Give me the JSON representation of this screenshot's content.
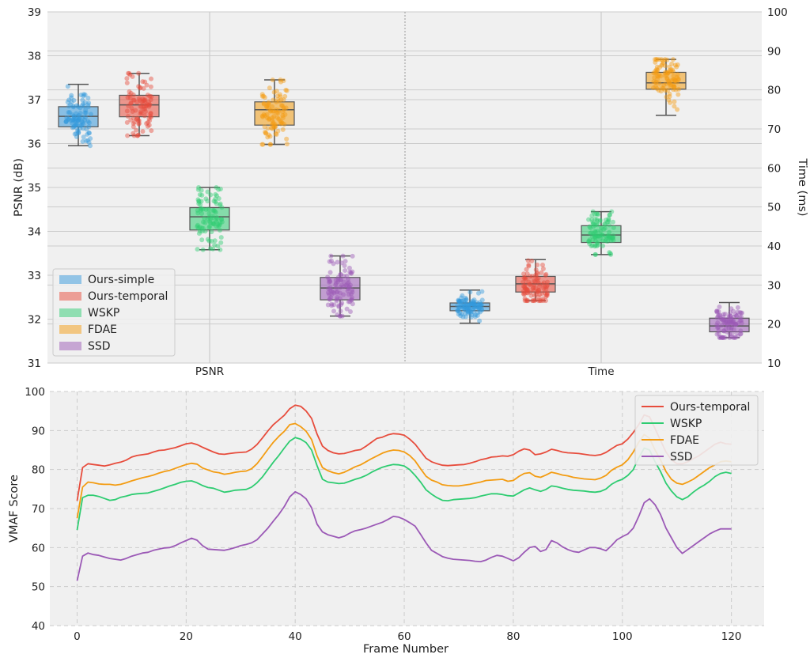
{
  "colors": {
    "background": "#f0f0f0",
    "grid": "#cbcbcb",
    "ours_simple": "#3498db",
    "ours_temporal": "#e74c3c",
    "wskp": "#2ecc71",
    "fdae": "#f39c12",
    "ssd": "#9b59b6"
  },
  "chart_data": [
    {
      "type": "box",
      "title": "",
      "categories": [
        "PSNR",
        "Time"
      ],
      "ylabel": "PSNR (dB)",
      "y2label": "Time (ms)",
      "ylim": [
        31,
        39
      ],
      "y2lim": [
        10,
        100
      ],
      "yticks": [
        "31",
        "32",
        "33",
        "34",
        "35",
        "36",
        "37",
        "38",
        "39"
      ],
      "y2ticks": [
        "10",
        "20",
        "30",
        "40",
        "50",
        "60",
        "70",
        "80",
        "90",
        "100"
      ],
      "grid": true,
      "legend": {
        "placement": "lower-left",
        "entries": [
          "Ours-simple",
          "Ours-temporal",
          "WSKP",
          "FDAE",
          "SSD"
        ]
      },
      "series": [
        {
          "name": "Ours-simple",
          "color": "#3498db",
          "psnr": {
            "min": 35.95,
            "q1": 36.38,
            "median": 36.62,
            "q3": 36.84,
            "max": 37.35
          },
          "time": {
            "min": 20.2,
            "q1": 23.4,
            "median": 24.5,
            "q3": 25.4,
            "max": 28.7
          }
        },
        {
          "name": "Ours-temporal",
          "color": "#e74c3c",
          "psnr": {
            "min": 36.18,
            "q1": 36.61,
            "median": 36.88,
            "q3": 37.1,
            "max": 37.6
          },
          "time": {
            "min": 26.0,
            "q1": 28.2,
            "median": 30.3,
            "q3": 32.2,
            "max": 36.5
          }
        },
        {
          "name": "WSKP",
          "color": "#2ecc71",
          "psnr": {
            "min": 33.58,
            "q1": 34.03,
            "median": 34.33,
            "q3": 34.54,
            "max": 35.0
          },
          "time": {
            "min": 37.8,
            "q1": 40.9,
            "median": 42.8,
            "q3": 45.2,
            "max": 48.8
          }
        },
        {
          "name": "FDAE",
          "color": "#f39c12",
          "psnr": {
            "min": 35.98,
            "q1": 36.42,
            "median": 36.77,
            "q3": 36.95,
            "max": 37.45
          },
          "time": {
            "min": 73.5,
            "q1": 80.2,
            "median": 81.8,
            "q3": 84.5,
            "max": 87.8
          }
        },
        {
          "name": "SSD",
          "color": "#9b59b6",
          "psnr": {
            "min": 32.07,
            "q1": 32.44,
            "median": 32.71,
            "q3": 32.95,
            "max": 33.44
          },
          "time": {
            "min": 16.5,
            "q1": 18.0,
            "median": 19.5,
            "q3": 21.5,
            "max": 25.5
          }
        }
      ]
    },
    {
      "type": "line",
      "title": "",
      "xlabel": "Frame Number",
      "ylabel": "VMAF Score",
      "xlim": [
        -5,
        126
      ],
      "ylim": [
        40,
        100
      ],
      "xticks": [
        "0",
        "20",
        "40",
        "60",
        "80",
        "100",
        "120"
      ],
      "yticks": [
        "40",
        "50",
        "60",
        "70",
        "80",
        "90",
        "100"
      ],
      "grid": true,
      "legend": {
        "placement": "top-right",
        "entries": [
          "Ours-temporal",
          "WSKP",
          "FDAE",
          "SSD"
        ]
      },
      "x": [
        0,
        1,
        2,
        3,
        4,
        5,
        6,
        7,
        8,
        9,
        10,
        11,
        12,
        13,
        14,
        15,
        16,
        17,
        18,
        19,
        20,
        21,
        22,
        23,
        24,
        25,
        26,
        27,
        28,
        29,
        30,
        31,
        32,
        33,
        34,
        35,
        36,
        37,
        38,
        39,
        40,
        41,
        42,
        43,
        44,
        45,
        46,
        47,
        48,
        49,
        50,
        51,
        52,
        53,
        54,
        55,
        56,
        57,
        58,
        59,
        60,
        61,
        62,
        63,
        64,
        65,
        66,
        67,
        68,
        69,
        70,
        71,
        72,
        73,
        74,
        75,
        76,
        77,
        78,
        79,
        80,
        81,
        82,
        83,
        84,
        85,
        86,
        87,
        88,
        89,
        90,
        91,
        92,
        93,
        94,
        95,
        96,
        97,
        98,
        99,
        100,
        101,
        102,
        103,
        104,
        105,
        106,
        107,
        108,
        109,
        110,
        111,
        112,
        113,
        114,
        115,
        116,
        117,
        118,
        119,
        120
      ],
      "series": [
        {
          "name": "Ours-temporal",
          "color": "#e74c3c",
          "values": [
            72.0,
            80.5,
            81.5,
            81.3,
            81.1,
            80.9,
            81.2,
            81.6,
            81.9,
            82.4,
            83.2,
            83.6,
            83.8,
            84.0,
            84.5,
            84.9,
            85.0,
            85.3,
            85.6,
            86.1,
            86.6,
            86.8,
            86.4,
            85.7,
            85.1,
            84.5,
            84.0,
            83.9,
            84.1,
            84.3,
            84.4,
            84.5,
            85.2,
            86.4,
            88.1,
            89.9,
            91.5,
            92.7,
            93.9,
            95.6,
            96.5,
            96.2,
            95.0,
            93.1,
            89.1,
            86.0,
            84.9,
            84.3,
            84.0,
            84.1,
            84.5,
            84.9,
            85.1,
            86.0,
            87.0,
            88.0,
            88.3,
            88.9,
            89.2,
            89.1,
            88.8,
            87.8,
            86.5,
            84.7,
            82.9,
            82.0,
            81.5,
            81.1,
            81.0,
            81.1,
            81.2,
            81.3,
            81.6,
            82.0,
            82.5,
            82.8,
            83.2,
            83.3,
            83.5,
            83.4,
            83.8,
            84.7,
            85.3,
            85.0,
            83.8,
            84.0,
            84.5,
            85.2,
            84.9,
            84.5,
            84.3,
            84.2,
            84.1,
            83.9,
            83.7,
            83.6,
            83.8,
            84.4,
            85.3,
            86.2,
            86.6,
            87.8,
            89.5,
            91.5,
            94.0,
            93.5,
            90.5,
            87.5,
            84.5,
            82.5,
            81.5,
            81.5,
            82.0,
            82.8,
            83.5,
            84.5,
            85.5,
            86.5,
            87.0,
            86.6,
            86.5
          ]
        },
        {
          "name": "WSKP",
          "color": "#2ecc71",
          "values": [
            64.5,
            72.8,
            73.4,
            73.4,
            73.1,
            72.6,
            72.1,
            72.3,
            72.9,
            73.2,
            73.6,
            73.8,
            73.9,
            74.0,
            74.4,
            74.8,
            75.3,
            75.8,
            76.2,
            76.7,
            77.0,
            77.1,
            76.6,
            75.9,
            75.4,
            75.2,
            74.7,
            74.2,
            74.4,
            74.7,
            74.8,
            74.9,
            75.5,
            76.6,
            78.1,
            80.0,
            81.9,
            83.6,
            85.5,
            87.3,
            88.2,
            87.8,
            86.9,
            85.0,
            81.0,
            77.5,
            76.8,
            76.6,
            76.4,
            76.5,
            77.0,
            77.5,
            77.9,
            78.5,
            79.3,
            80.0,
            80.6,
            81.0,
            81.3,
            81.2,
            80.9,
            80.0,
            78.5,
            76.8,
            74.8,
            73.7,
            72.8,
            72.1,
            72.0,
            72.3,
            72.4,
            72.5,
            72.6,
            72.8,
            73.2,
            73.5,
            73.8,
            73.8,
            73.6,
            73.3,
            73.2,
            74.0,
            74.8,
            75.3,
            74.8,
            74.4,
            74.9,
            75.8,
            75.6,
            75.2,
            74.9,
            74.7,
            74.6,
            74.5,
            74.3,
            74.2,
            74.4,
            75.0,
            76.2,
            77.0,
            77.5,
            78.5,
            80.0,
            83.0,
            85.5,
            85.0,
            82.0,
            79.5,
            76.5,
            74.5,
            73.0,
            72.3,
            73.0,
            74.2,
            75.2,
            76.0,
            77.0,
            78.2,
            79.0,
            79.3,
            79.0
          ]
        },
        {
          "name": "FDAE",
          "color": "#f39c12",
          "values": [
            67.5,
            75.5,
            76.8,
            76.6,
            76.3,
            76.2,
            76.2,
            76.0,
            76.2,
            76.6,
            77.1,
            77.5,
            77.9,
            78.2,
            78.6,
            79.1,
            79.5,
            79.8,
            80.3,
            80.8,
            81.3,
            81.6,
            81.4,
            80.4,
            79.9,
            79.4,
            79.2,
            78.8,
            79.0,
            79.3,
            79.5,
            79.6,
            80.2,
            81.5,
            83.3,
            85.2,
            87.0,
            88.5,
            89.8,
            91.5,
            91.8,
            91.0,
            89.8,
            87.7,
            83.5,
            80.5,
            79.7,
            79.2,
            78.9,
            79.3,
            80.0,
            80.7,
            81.2,
            82.0,
            82.8,
            83.5,
            84.2,
            84.7,
            85.0,
            84.9,
            84.5,
            83.6,
            82.2,
            80.2,
            78.3,
            77.3,
            76.8,
            76.1,
            75.9,
            75.8,
            75.8,
            76.0,
            76.2,
            76.5,
            76.8,
            77.2,
            77.3,
            77.4,
            77.5,
            77.0,
            77.2,
            78.2,
            79.0,
            79.2,
            78.3,
            78.0,
            78.6,
            79.3,
            79.0,
            78.6,
            78.4,
            78.0,
            77.8,
            77.6,
            77.5,
            77.4,
            77.8,
            78.5,
            79.8,
            80.6,
            81.2,
            82.5,
            84.5,
            87.0,
            89.0,
            88.0,
            85.0,
            82.5,
            79.5,
            77.5,
            76.5,
            76.2,
            76.8,
            77.5,
            78.5,
            79.5,
            80.5,
            81.2,
            82.0,
            82.2,
            82.0
          ]
        },
        {
          "name": "SSD",
          "color": "#9b59b6",
          "values": [
            51.5,
            57.8,
            58.6,
            58.2,
            58.0,
            57.6,
            57.2,
            57.0,
            56.8,
            57.2,
            57.8,
            58.2,
            58.6,
            58.8,
            59.3,
            59.6,
            59.9,
            60.0,
            60.5,
            61.2,
            61.8,
            62.4,
            61.9,
            60.5,
            59.6,
            59.5,
            59.4,
            59.3,
            59.6,
            60.0,
            60.5,
            60.8,
            61.2,
            62.0,
            63.5,
            65.0,
            66.8,
            68.5,
            70.5,
            73.0,
            74.3,
            73.6,
            72.5,
            70.2,
            66.0,
            64.0,
            63.3,
            62.9,
            62.5,
            62.9,
            63.7,
            64.3,
            64.6,
            65.0,
            65.5,
            66.0,
            66.5,
            67.2,
            68.0,
            67.8,
            67.2,
            66.4,
            65.5,
            63.4,
            61.2,
            59.3,
            58.5,
            57.7,
            57.3,
            57.0,
            56.9,
            56.8,
            56.7,
            56.5,
            56.4,
            56.8,
            57.5,
            58.0,
            57.8,
            57.2,
            56.6,
            57.4,
            58.8,
            60.0,
            60.3,
            59.0,
            59.5,
            61.8,
            61.2,
            60.2,
            59.5,
            59.0,
            58.8,
            59.4,
            60.0,
            60.0,
            59.7,
            59.2,
            60.5,
            62.0,
            62.8,
            63.5,
            65.0,
            68.0,
            71.5,
            72.5,
            71.0,
            68.5,
            65.0,
            62.5,
            60.0,
            58.5,
            59.5,
            60.5,
            61.5,
            62.5,
            63.5,
            64.2,
            64.8,
            64.8,
            64.8
          ]
        }
      ]
    }
  ]
}
